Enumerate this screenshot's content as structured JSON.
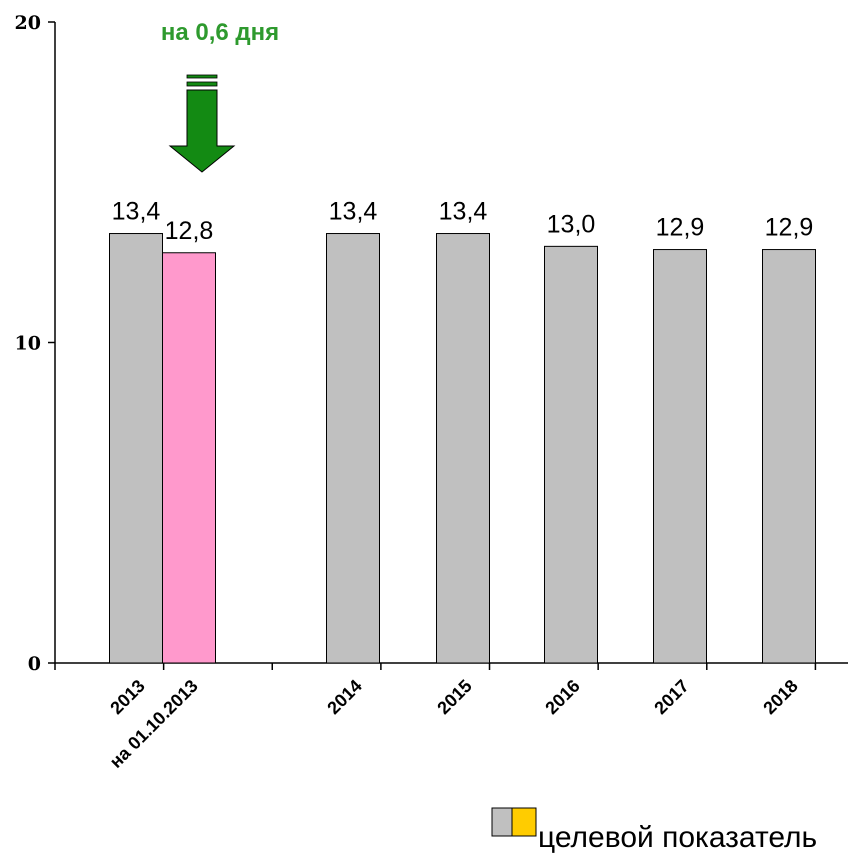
{
  "chart_data": {
    "type": "bar",
    "categories": [
      "2013",
      "на 01.10.2013",
      "2014",
      "2015",
      "2016",
      "2017",
      "2018"
    ],
    "values": [
      13.4,
      12.8,
      13.4,
      13.4,
      13.0,
      12.9,
      12.9
    ],
    "value_labels": [
      "13,4",
      "12,8",
      "13,4",
      "13,4",
      "13,0",
      "12,9",
      "12,9"
    ],
    "ylim": [
      0,
      20
    ],
    "yticks": [
      0,
      10,
      20
    ],
    "ytick_labels": [
      "0",
      "10",
      "20"
    ],
    "grid": false,
    "bar_colors": [
      "#c0c0c0",
      "#ff99cc",
      "#c0c0c0",
      "#c0c0c0",
      "#c0c0c0",
      "#c0c0c0",
      "#c0c0c0"
    ],
    "annotation": {
      "text": "на 0,6 дня",
      "color": "#2e9a2e",
      "arrow_color": "#138a13"
    },
    "legend": {
      "label": "целевой показатель",
      "swatch_colors": [
        "#c0c0c0",
        "#ffcc00"
      ],
      "placement": "bottom-right"
    }
  }
}
